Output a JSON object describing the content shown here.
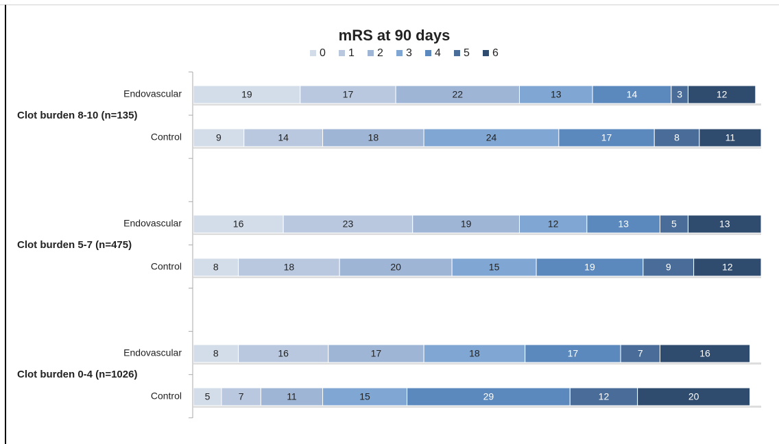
{
  "chart_data": {
    "type": "stacked-bar-horizontal",
    "title": "mRS at 90 days",
    "groups": [
      "Clot burden 8-10 (n=135)",
      "Clot burden 5-7 (n=475)",
      "Clot burden 0-4 (n=1026)"
    ],
    "categories": [
      "Endovascular",
      "Control",
      "Endovascular",
      "Control",
      "Endovascular",
      "Control"
    ],
    "series": [
      {
        "name": "0",
        "color": "#d3dce9",
        "values": [
          19,
          9,
          16,
          8,
          8,
          5
        ]
      },
      {
        "name": "1",
        "color": "#b9c8df",
        "values": [
          17,
          14,
          23,
          18,
          16,
          7
        ]
      },
      {
        "name": "2",
        "color": "#9fb5d6",
        "values": [
          22,
          18,
          19,
          20,
          17,
          11
        ]
      },
      {
        "name": "3",
        "color": "#80a7d3",
        "values": [
          13,
          24,
          12,
          15,
          18,
          15
        ]
      },
      {
        "name": "4",
        "color": "#5b89bd",
        "values": [
          14,
          17,
          13,
          19,
          17,
          29
        ]
      },
      {
        "name": "5",
        "color": "#496d98",
        "values": [
          3,
          8,
          5,
          9,
          7,
          12
        ]
      },
      {
        "name": "6",
        "color": "#2f4b6d",
        "values": [
          12,
          11,
          13,
          12,
          16,
          20
        ]
      }
    ],
    "legend": "top"
  }
}
